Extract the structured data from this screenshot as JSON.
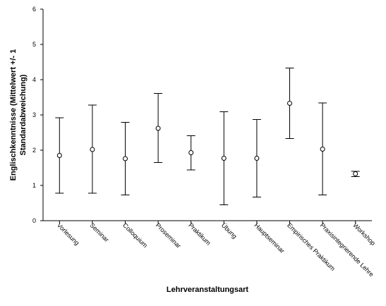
{
  "chart_data": {
    "type": "errorbar",
    "xlabel": "Lehrveranstaltungsart",
    "ylabel": [
      "Englischkenntnisse (Mittelwert +/- 1",
      "Standardabweichung)"
    ],
    "ylim": [
      0,
      6
    ],
    "yticks": [
      "0",
      "1",
      "2",
      "3",
      "4",
      "5",
      "6"
    ],
    "grid": false,
    "categories": [
      "Vorlesung",
      "Seminar",
      "Colloquium",
      "Proseminar",
      "Praktikum",
      "Übung",
      "Hauptseminar",
      "Empirisches Praktikum",
      "Praxisintegrierende Lehre",
      "Workshop"
    ],
    "series": [
      {
        "mean": [
          1.85,
          2.02,
          1.76,
          2.62,
          1.93,
          1.77,
          1.77,
          3.33,
          2.03,
          1.33
        ],
        "lower": [
          0.78,
          0.78,
          0.73,
          1.65,
          1.44,
          0.45,
          0.67,
          2.33,
          0.73,
          1.25
        ],
        "upper": [
          2.92,
          3.28,
          2.79,
          3.61,
          2.41,
          3.09,
          2.87,
          4.33,
          3.34,
          1.4
        ]
      }
    ]
  }
}
